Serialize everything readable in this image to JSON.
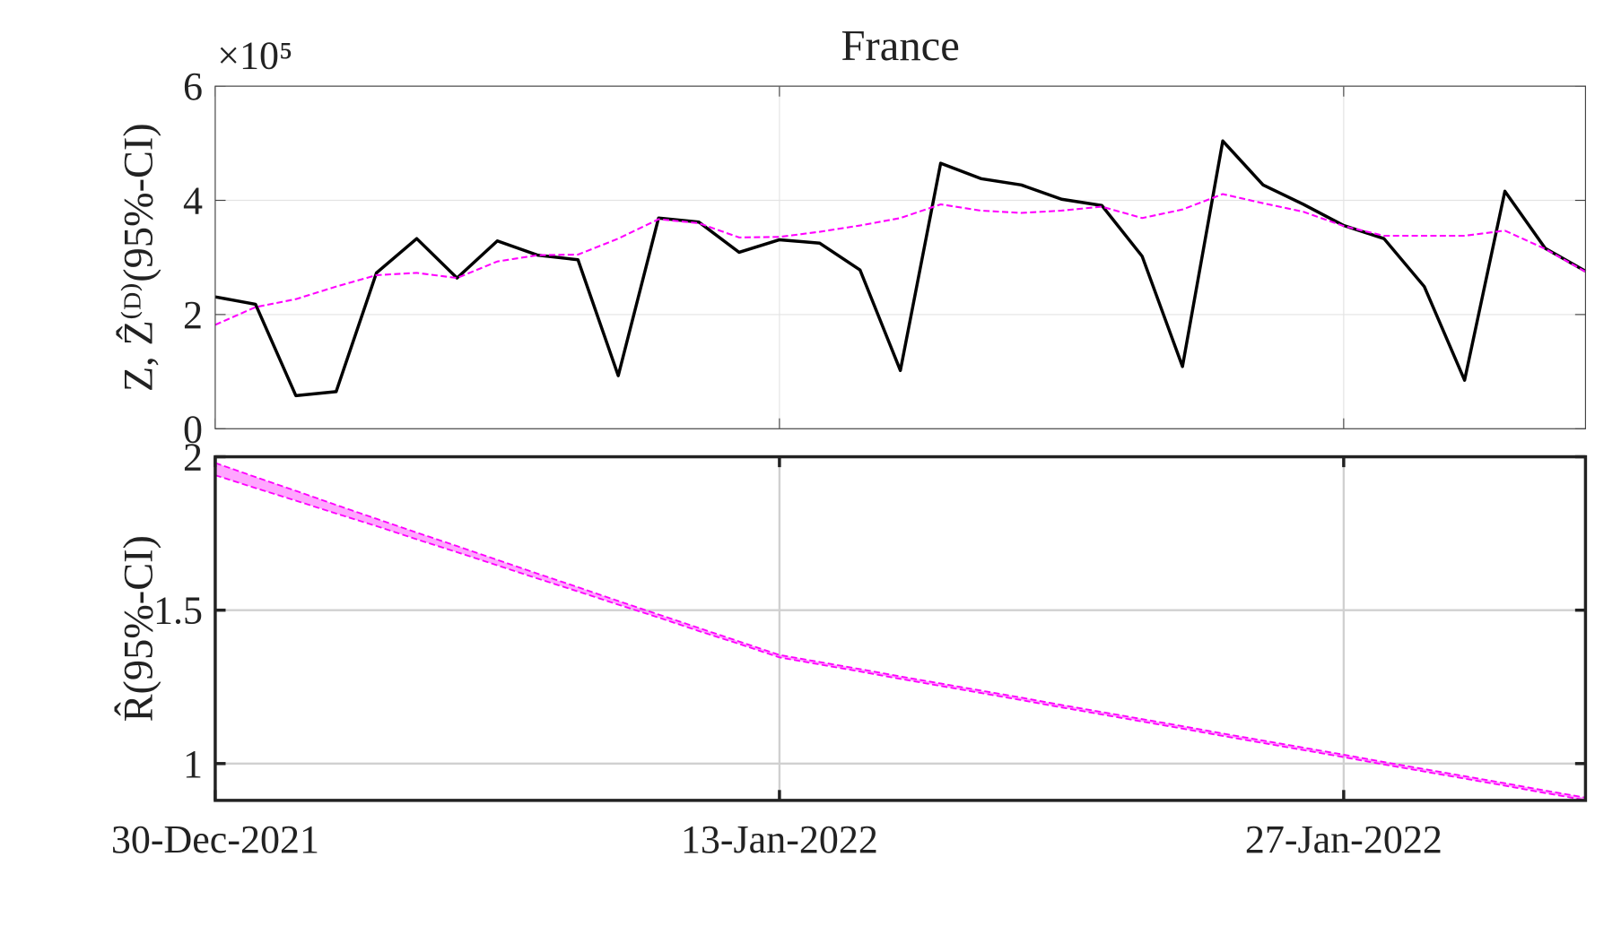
{
  "chart_data": [
    {
      "type": "line",
      "title": "France",
      "ylabel": "Z, Ẑ⁽ᴰ⁾(95%-CI)",
      "y_exponent": "×10⁵",
      "grid": true,
      "x": [
        "30-Dec-2021",
        "31-Dec-2021",
        "01-Jan-2022",
        "02-Jan-2022",
        "03-Jan-2022",
        "04-Jan-2022",
        "05-Jan-2022",
        "06-Jan-2022",
        "07-Jan-2022",
        "08-Jan-2022",
        "09-Jan-2022",
        "10-Jan-2022",
        "11-Jan-2022",
        "12-Jan-2022",
        "13-Jan-2022",
        "14-Jan-2022",
        "15-Jan-2022",
        "16-Jan-2022",
        "17-Jan-2022",
        "18-Jan-2022",
        "19-Jan-2022",
        "20-Jan-2022",
        "21-Jan-2022",
        "22-Jan-2022",
        "23-Jan-2022",
        "24-Jan-2022",
        "25-Jan-2022",
        "26-Jan-2022",
        "27-Jan-2022",
        "28-Jan-2022",
        "29-Jan-2022",
        "30-Jan-2022",
        "31-Jan-2022",
        "01-Feb-2022",
        "02-Feb-2022"
      ],
      "xlim": [
        "30-Dec-2021",
        "02-Feb-2022"
      ],
      "xticks": [
        "30-Dec-2021",
        "13-Jan-2022",
        "27-Jan-2022"
      ],
      "ylim": [
        0,
        600000
      ],
      "yticks": [
        {
          "value": 0,
          "label": "0"
        },
        {
          "value": 200000,
          "label": "2"
        },
        {
          "value": 400000,
          "label": "4"
        },
        {
          "value": 600000,
          "label": "6"
        }
      ],
      "series": [
        {
          "color": "#000000",
          "style": "solid",
          "values": [
            231000,
            218000,
            58000,
            65000,
            273000,
            333000,
            264000,
            329000,
            304000,
            296000,
            93000,
            369000,
            362000,
            309000,
            331000,
            325000,
            278000,
            102000,
            465000,
            438000,
            427000,
            402000,
            391000,
            302000,
            109000,
            504000,
            427000,
            393000,
            356000,
            333000,
            249000,
            85000,
            416000,
            316000,
            276000
          ]
        },
        {
          "color": "#ff00ff",
          "style": "dashed",
          "values": [
            182000,
            213000,
            227000,
            249000,
            269000,
            273000,
            264000,
            293000,
            304000,
            305000,
            333000,
            367000,
            360000,
            335000,
            336000,
            345000,
            356000,
            369000,
            393000,
            382000,
            378000,
            382000,
            389000,
            369000,
            384000,
            411000,
            395000,
            380000,
            355000,
            338000,
            338000,
            338000,
            347000,
            315000,
            275000
          ]
        }
      ]
    },
    {
      "type": "band",
      "ylabel": "R̂(95%-CI)",
      "grid": true,
      "x": [
        "30-Dec-2021",
        "31-Dec-2021",
        "01-Jan-2022",
        "02-Jan-2022",
        "03-Jan-2022",
        "04-Jan-2022",
        "05-Jan-2022",
        "06-Jan-2022",
        "07-Jan-2022",
        "08-Jan-2022",
        "09-Jan-2022",
        "10-Jan-2022",
        "11-Jan-2022",
        "12-Jan-2022",
        "13-Jan-2022",
        "14-Jan-2022",
        "15-Jan-2022",
        "16-Jan-2022",
        "17-Jan-2022",
        "18-Jan-2022",
        "19-Jan-2022",
        "20-Jan-2022",
        "21-Jan-2022",
        "22-Jan-2022",
        "23-Jan-2022",
        "24-Jan-2022",
        "25-Jan-2022",
        "26-Jan-2022",
        "27-Jan-2022",
        "28-Jan-2022",
        "29-Jan-2022",
        "30-Jan-2022",
        "31-Jan-2022",
        "01-Feb-2022",
        "02-Feb-2022"
      ],
      "xlim": [
        "30-Dec-2021",
        "02-Feb-2022"
      ],
      "xticks": [
        "30-Dec-2021",
        "13-Jan-2022",
        "27-Jan-2022"
      ],
      "ylim": [
        0.88,
        2
      ],
      "yticks": [
        1,
        1.5,
        2
      ],
      "color": "#ff00ff",
      "upper": [
        1.98,
        1.934,
        1.889,
        1.843,
        1.798,
        1.753,
        1.709,
        1.664,
        1.619,
        1.575,
        1.53,
        1.486,
        1.442,
        1.398,
        1.354,
        1.331,
        1.308,
        1.284,
        1.261,
        1.238,
        1.215,
        1.191,
        1.168,
        1.145,
        1.122,
        1.098,
        1.075,
        1.052,
        1.029,
        1.005,
        0.982,
        0.959,
        0.936,
        0.912,
        0.889
      ],
      "lower": [
        1.94,
        1.898,
        1.857,
        1.815,
        1.774,
        1.731,
        1.689,
        1.646,
        1.603,
        1.561,
        1.518,
        1.476,
        1.432,
        1.39,
        1.346,
        1.323,
        1.3,
        1.276,
        1.253,
        1.23,
        1.207,
        1.183,
        1.16,
        1.137,
        1.114,
        1.09,
        1.067,
        1.044,
        1.021,
        0.997,
        0.974,
        0.951,
        0.928,
        0.904,
        0.881
      ]
    }
  ]
}
